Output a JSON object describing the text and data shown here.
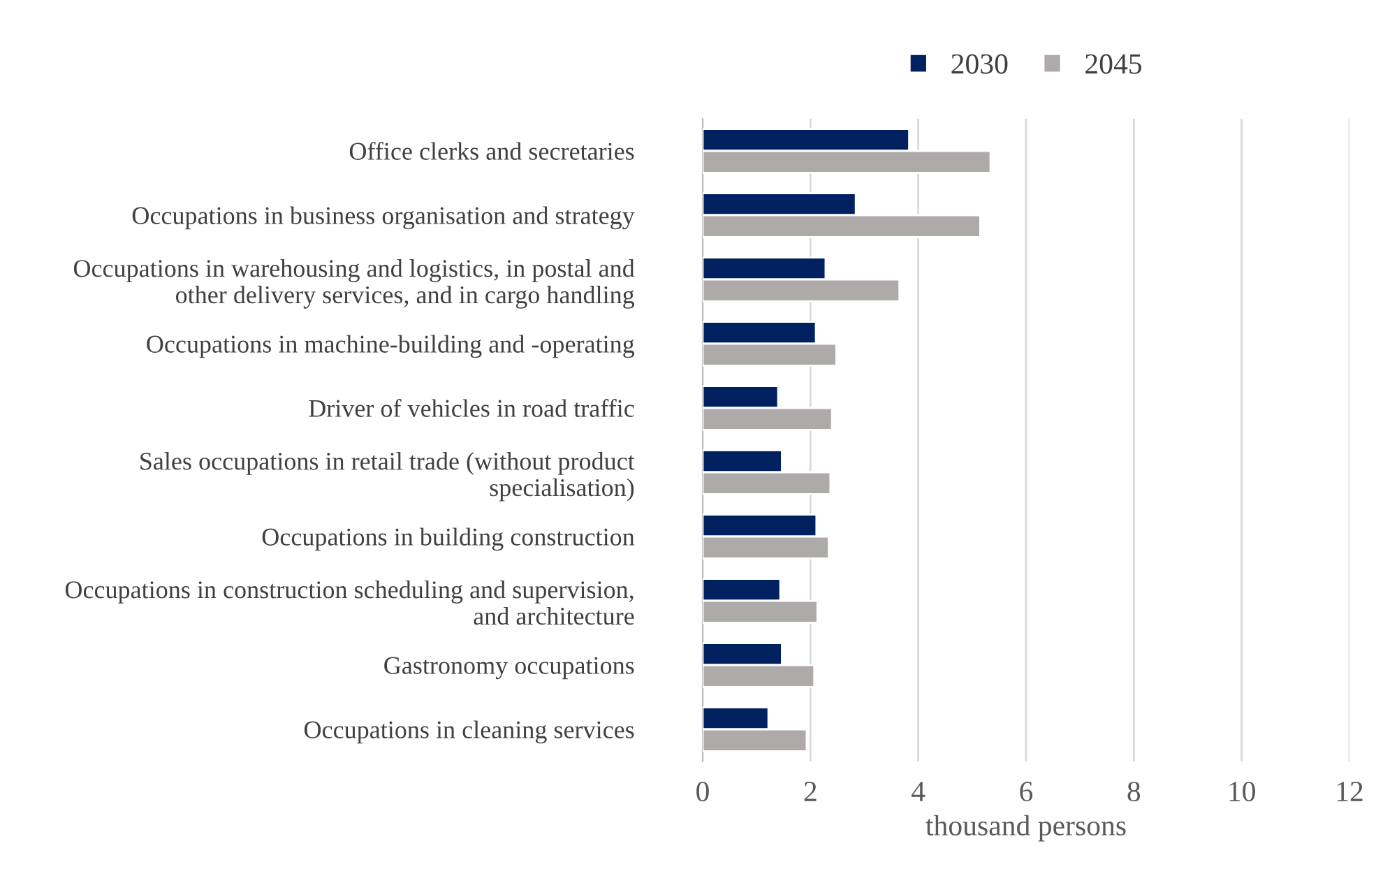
{
  "chart_data": {
    "type": "bar",
    "orientation": "horizontal",
    "xlabel": "thousand persons",
    "categories": [
      "Office clerks and secretaries",
      "Occupations in business organisation and strategy",
      "Occupations in warehousing and logistics, in postal and\nother delivery services, and in cargo handling",
      "Occupations in machine-building and -operating",
      "Driver of vehicles in road traffic",
      "Sales occupations in retail trade (without product\nspecialisation)",
      "Occupations in building construction",
      "Occupations in construction scheduling and supervision,\nand architecture",
      "Gastronomy occupations",
      "Occupations in cleaning services"
    ],
    "series": [
      {
        "name": "2030",
        "color": "#002060",
        "values": [
          3.83,
          2.84,
          2.28,
          2.1,
          1.4,
          1.47,
          2.11,
          1.44,
          1.47,
          1.22
        ]
      },
      {
        "name": "2045",
        "color": "#aeaaaa",
        "values": [
          5.34,
          5.15,
          3.65,
          2.48,
          2.4,
          2.37,
          2.34,
          2.13,
          2.07,
          1.93
        ]
      }
    ],
    "xlim": [
      0,
      12
    ],
    "xticks": [
      0,
      2,
      4,
      6,
      8,
      10,
      12
    ],
    "grid": "x",
    "legend": "top"
  }
}
